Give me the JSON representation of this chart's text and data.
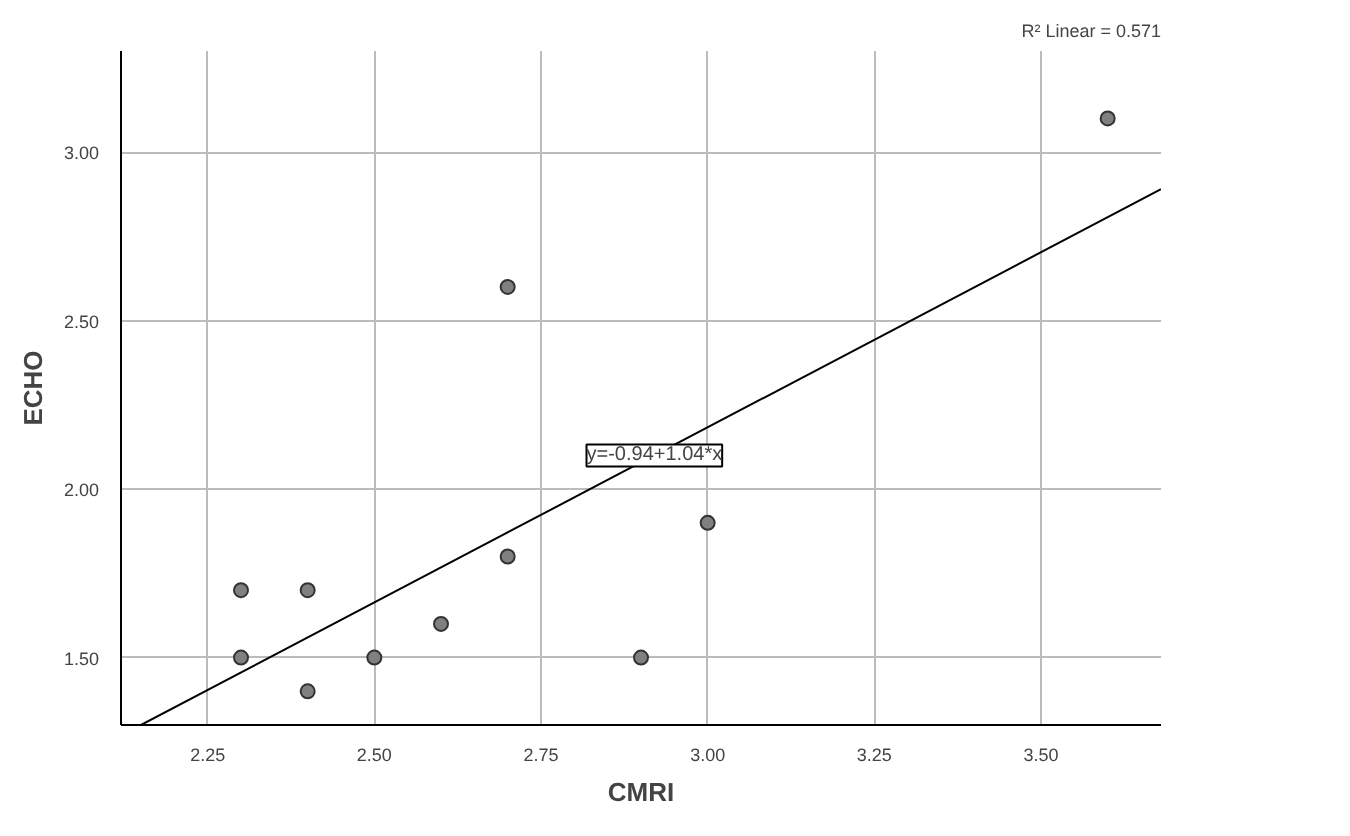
{
  "chart_data": {
    "type": "scatter",
    "xlabel": "CMRI",
    "ylabel": "ECHO",
    "xlim": [
      2.12,
      3.68
    ],
    "ylim": [
      1.3,
      3.3
    ],
    "xticks": [
      2.25,
      {
        "value": 2.5,
        "label": "2.50"
      },
      2.75,
      {
        "value": 3,
        "label": "3.00"
      },
      3.25,
      {
        "value": 3.5,
        "label": "3.50"
      }
    ],
    "yticks": [
      {
        "value": 1.5,
        "label": "1.50"
      },
      {
        "value": 2,
        "label": "2.00"
      },
      {
        "value": 2.5,
        "label": "2.50"
      },
      {
        "value": 3,
        "label": "3.00"
      }
    ],
    "grid": true,
    "series": [
      {
        "color": "#808080",
        "marker": "circle",
        "x": [
          2.3,
          2.3,
          2.4,
          2.4,
          2.5,
          2.6,
          2.7,
          2.7,
          2.9,
          3.0,
          3.6
        ],
        "values": [
          1.7,
          1.5,
          1.7,
          1.4,
          1.5,
          1.6,
          2.6,
          1.8,
          1.5,
          1.9,
          3.1
        ]
      },
      {
        "type": "line",
        "marker": "none",
        "color": "#000000",
        "x": [
          2.15,
          3.68
        ],
        "values": [
          1.3,
          2.89
        ]
      }
    ],
    "annotations": [
      {
        "text": "y=-0.94+1.04*x",
        "x": 2.92,
        "y": 2.1
      },
      "R² Linear = 0.571"
    ]
  }
}
